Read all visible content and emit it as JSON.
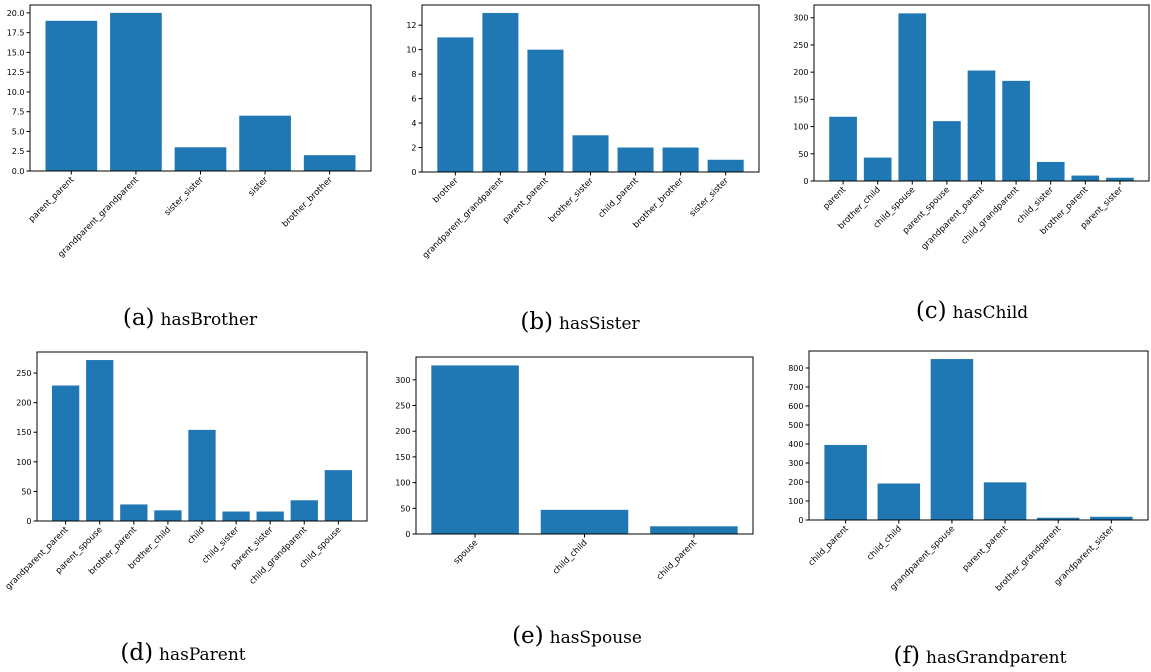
{
  "chart_data": [
    {
      "type": "bar",
      "caption_letter": "(a)",
      "caption": "hasBrother",
      "categories": [
        "parent_parent",
        "grandparent_grandparent",
        "sister_sister",
        "sister",
        "brother_brother"
      ],
      "values": [
        19,
        20,
        3,
        7,
        2
      ],
      "ylim": [
        0,
        21
      ],
      "yticks": [
        0.0,
        2.5,
        5.0,
        7.5,
        10.0,
        12.5,
        15.0,
        17.5,
        20.0
      ],
      "ytick_labels": [
        "0.0",
        "2.5",
        "5.0",
        "7.5",
        "10.0",
        "12.5",
        "15.0",
        "17.5",
        "20.0"
      ],
      "grid": false,
      "color": "#1f77b4"
    },
    {
      "type": "bar",
      "caption_letter": "(b)",
      "caption": "hasSister",
      "categories": [
        "brother",
        "grandparent_grandparent",
        "parent_parent",
        "brother_sister",
        "child_parent",
        "brother_brother",
        "sister_sister"
      ],
      "values": [
        11,
        13,
        10,
        3,
        2,
        2,
        1
      ],
      "ylim": [
        0,
        13.65
      ],
      "yticks": [
        0,
        2,
        4,
        6,
        8,
        10,
        12
      ],
      "ytick_labels": [
        "0",
        "2",
        "4",
        "6",
        "8",
        "10",
        "12"
      ],
      "grid": false,
      "color": "#1f77b4"
    },
    {
      "type": "bar",
      "caption_letter": "(c)",
      "caption": "hasChild",
      "categories": [
        "parent",
        "brother_child",
        "child_spouse",
        "parent_spouse",
        "grandparent_parent",
        "child_grandparent",
        "child_sister",
        "brother_parent",
        "parent_sister"
      ],
      "values": [
        118,
        43,
        308,
        110,
        203,
        184,
        35,
        10,
        6
      ],
      "ylim": [
        0,
        323.4
      ],
      "yticks": [
        0,
        50,
        100,
        150,
        200,
        250,
        300
      ],
      "ytick_labels": [
        "0",
        "50",
        "100",
        "150",
        "200",
        "250",
        "300"
      ],
      "grid": false,
      "color": "#1f77b4"
    },
    {
      "type": "bar",
      "caption_letter": "(d)",
      "caption": "hasParent",
      "categories": [
        "grandparent_parent",
        "parent_spouse",
        "brother_parent",
        "brother_child",
        "child",
        "child_sister",
        "parent_sister",
        "child_grandparent",
        "child_spouse"
      ],
      "values": [
        229,
        272,
        28,
        18,
        154,
        16,
        16,
        35,
        86
      ],
      "ylim": [
        0,
        285.6
      ],
      "yticks": [
        0,
        50,
        100,
        150,
        200,
        250
      ],
      "ytick_labels": [
        "0",
        "50",
        "100",
        "150",
        "200",
        "250"
      ],
      "grid": false,
      "color": "#1f77b4"
    },
    {
      "type": "bar",
      "caption_letter": "(e)",
      "caption": "hasSpouse",
      "categories": [
        "spouse",
        "child_child",
        "child_parent"
      ],
      "values": [
        328,
        47,
        15
      ],
      "ylim": [
        0,
        344.4
      ],
      "yticks": [
        0,
        50,
        100,
        150,
        200,
        250,
        300
      ],
      "ytick_labels": [
        "0",
        "50",
        "100",
        "150",
        "200",
        "250",
        "300"
      ],
      "grid": false,
      "color": "#1f77b4"
    },
    {
      "type": "bar",
      "caption_letter": "(f)",
      "caption": "hasGrandparent",
      "categories": [
        "child_parent",
        "child_child",
        "grandparent_spouse",
        "parent_parent",
        "brother_grandparent",
        "grandparent_sister"
      ],
      "values": [
        395,
        192,
        847,
        198,
        12,
        17
      ],
      "ylim": [
        0,
        889.35
      ],
      "yticks": [
        0,
        100,
        200,
        300,
        400,
        500,
        600,
        700,
        800
      ],
      "ytick_labels": [
        "0",
        "100",
        "200",
        "300",
        "400",
        "500",
        "600",
        "700",
        "800"
      ],
      "grid": false,
      "color": "#1f77b4"
    }
  ]
}
